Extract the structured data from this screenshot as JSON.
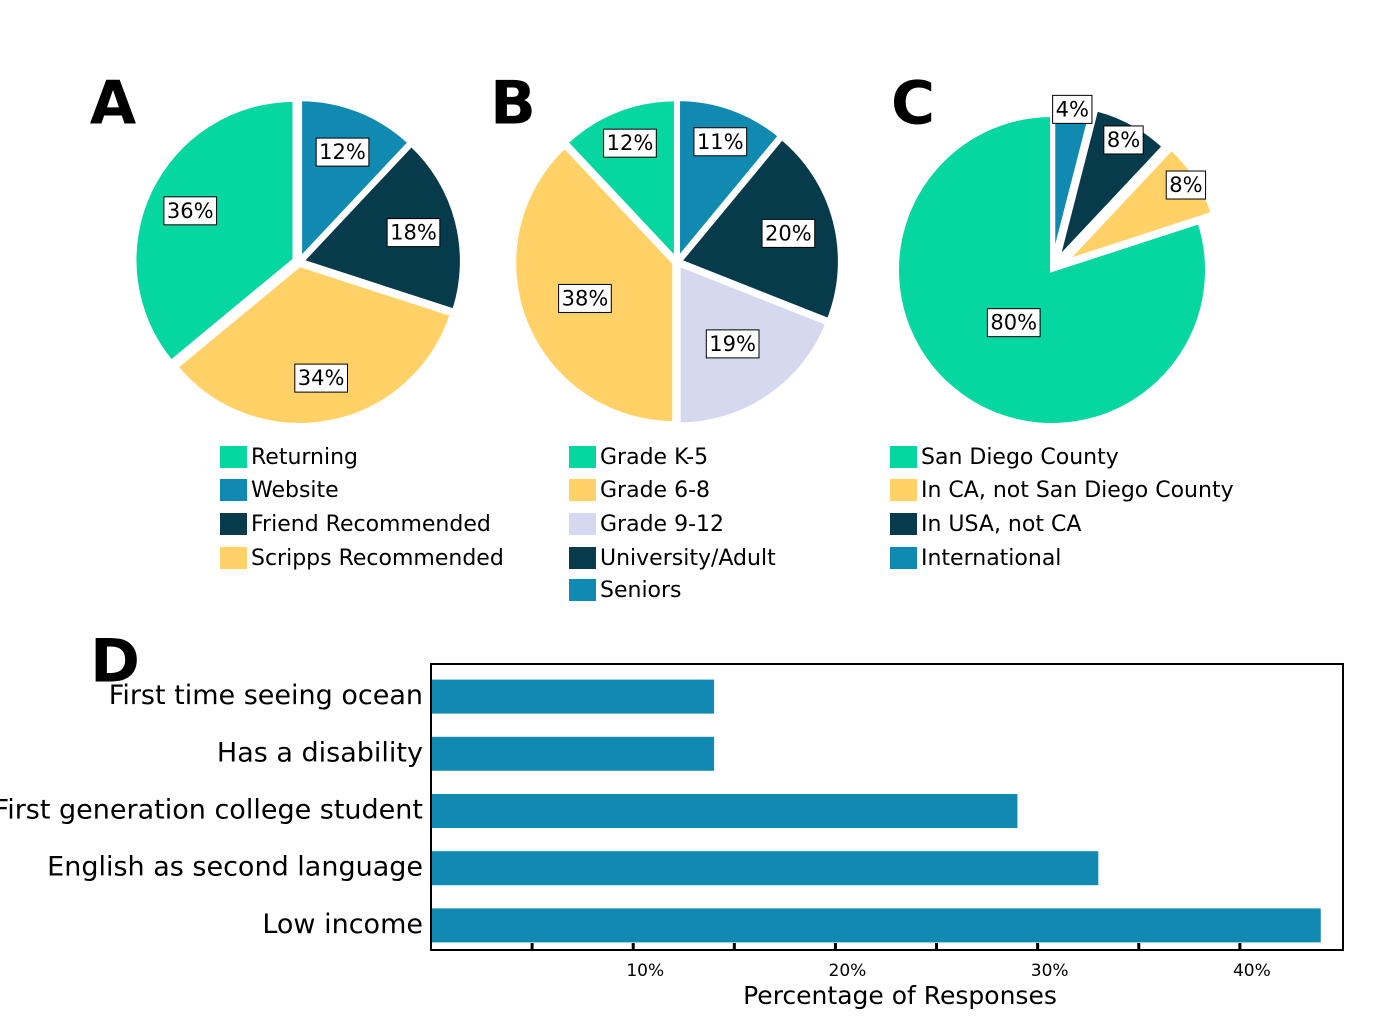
{
  "chart_data": [
    {
      "type": "pie",
      "panel": "A",
      "categories": [
        "Returning",
        "Website",
        "Friend Recommended",
        "Scripps Recommended"
      ],
      "values": [
        36,
        12,
        18,
        34
      ],
      "value_labels": [
        "36%",
        "12%",
        "18%",
        "34%"
      ],
      "colors": [
        "#06d6a0",
        "#118ab2",
        "#073b4c",
        "#ffd166"
      ]
    },
    {
      "type": "pie",
      "panel": "B",
      "categories": [
        "Grade K-5",
        "Grade 6-8",
        "Grade 9-12",
        "University/Adult",
        "Seniors"
      ],
      "values": [
        12,
        38,
        19,
        20,
        11
      ],
      "value_labels": [
        "12%",
        "38%",
        "19%",
        "20%",
        "11%"
      ],
      "colors": [
        "#06d6a0",
        "#ffd166",
        "#d6d8f0",
        "#073b4c",
        "#118ab2"
      ]
    },
    {
      "type": "pie",
      "panel": "C",
      "categories": [
        "San Diego County",
        "In CA, not San Diego County",
        "In USA, not CA",
        "International"
      ],
      "values": [
        80,
        8,
        8,
        4
      ],
      "value_labels": [
        "80%",
        "8%",
        "8%",
        "4%"
      ],
      "colors": [
        "#06d6a0",
        "#ffd166",
        "#073b4c",
        "#118ab2"
      ]
    },
    {
      "type": "hbar",
      "panel": "D",
      "categories": [
        "First time seeing ocean",
        "Has a disability",
        "First generation college student",
        "English as second language",
        "Low income"
      ],
      "values": [
        14,
        14,
        29,
        33,
        44
      ],
      "color": "#118ab2",
      "x_label": "Percentage of Responses",
      "xlim": [
        0,
        45.1
      ],
      "xticks": [
        {
          "value": 10,
          "label": "10%"
        },
        {
          "value": 20,
          "label": "20%"
        },
        {
          "value": 30,
          "label": "30%"
        },
        {
          "value": 40,
          "label": "40%"
        }
      ],
      "xminor": [
        5,
        15,
        25,
        35
      ]
    }
  ]
}
